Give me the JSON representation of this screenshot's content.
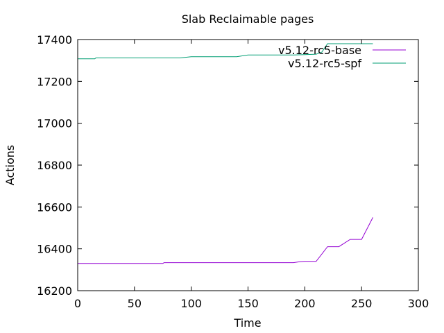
{
  "chart_data": {
    "type": "line",
    "title": "Slab Reclaimable pages",
    "xlabel": "Time",
    "ylabel": "Actions",
    "xlim": [
      0,
      300
    ],
    "ylim": [
      16200,
      17400
    ],
    "x_ticks": [
      "0",
      "50",
      "100",
      "150",
      "200",
      "250",
      "300"
    ],
    "y_ticks": [
      "16200",
      "16400",
      "16600",
      "16800",
      "17000",
      "17200",
      "17400"
    ],
    "grid": false,
    "legend_position": "top-right",
    "series": [
      {
        "name": "v5.12-rc5-base",
        "color": "#9400d3",
        "points": [
          [
            0,
            16330
          ],
          [
            75,
            16330
          ],
          [
            76,
            16334
          ],
          [
            190,
            16334
          ],
          [
            195,
            16338
          ],
          [
            200,
            16340
          ],
          [
            210,
            16340
          ],
          [
            220,
            16410
          ],
          [
            230,
            16410
          ],
          [
            240,
            16445
          ],
          [
            250,
            16445
          ],
          [
            260,
            16550
          ]
        ]
      },
      {
        "name": "v5.12-rc5-spf",
        "color": "#009e73",
        "points": [
          [
            0,
            17308
          ],
          [
            15,
            17308
          ],
          [
            16,
            17312
          ],
          [
            90,
            17312
          ],
          [
            100,
            17318
          ],
          [
            140,
            17318
          ],
          [
            150,
            17326
          ],
          [
            190,
            17326
          ],
          [
            200,
            17328
          ],
          [
            210,
            17330
          ],
          [
            215,
            17340
          ],
          [
            220,
            17380
          ],
          [
            260,
            17380
          ]
        ]
      }
    ]
  }
}
